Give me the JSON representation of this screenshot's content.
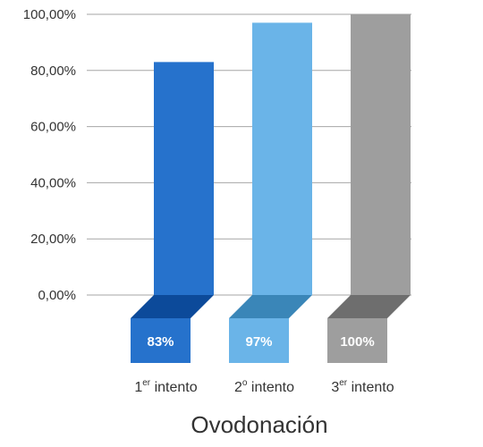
{
  "chart_data": {
    "type": "bar",
    "categories": [
      {
        "base": "1",
        "sup": "er",
        "rest": " intento"
      },
      {
        "base": "2",
        "sup": "o",
        "rest": " intento"
      },
      {
        "base": "3",
        "sup": "er",
        "rest": " intento"
      }
    ],
    "values": [
      83,
      97,
      100
    ],
    "value_labels": [
      "83%",
      "97%",
      "100%"
    ],
    "xlabel": "Ovodonación",
    "ylabel": "",
    "ylim": [
      0,
      100
    ],
    "yticks": [
      0,
      20,
      40,
      60,
      80,
      100
    ],
    "ytick_labels": [
      "0,00%",
      "20,00%",
      "40,00%",
      "60,00%",
      "80,00%",
      "100,00%"
    ],
    "grid": true,
    "colors": {
      "front": [
        "#2672cc",
        "#6ab4e8",
        "#9e9e9e"
      ],
      "fold": [
        "#0c4a9a",
        "#3a86b8",
        "#6e6e6e"
      ]
    }
  }
}
